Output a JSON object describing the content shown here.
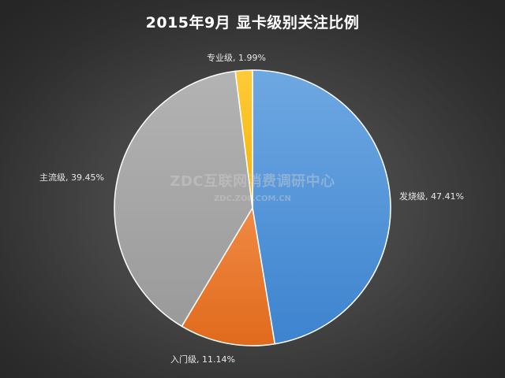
{
  "chart_data": {
    "type": "pie",
    "title": "2015年9月  显卡级别关注比例",
    "start_angle_deg": 0,
    "direction": "clockwise",
    "slices": [
      {
        "label": "发烧级",
        "value": 47.41,
        "value_label": "发烧级, 47.41%",
        "color": "#4a8fd6"
      },
      {
        "label": "入门级",
        "value": 11.14,
        "value_label": "入门级, 11.14%",
        "color": "#ea7428"
      },
      {
        "label": "主流级",
        "value": 39.45,
        "value_label": "主流级, 39.45%",
        "color": "#a6a6a6"
      },
      {
        "label": "专业级",
        "value": 1.99,
        "value_label": "专业级, 1.99%",
        "color": "#ffc21e"
      }
    ],
    "legend": "none",
    "grid": false
  },
  "watermark": {
    "main": "ZDC互联网消费调研中心",
    "sub": "ZDC.ZOL.COM.CN"
  }
}
